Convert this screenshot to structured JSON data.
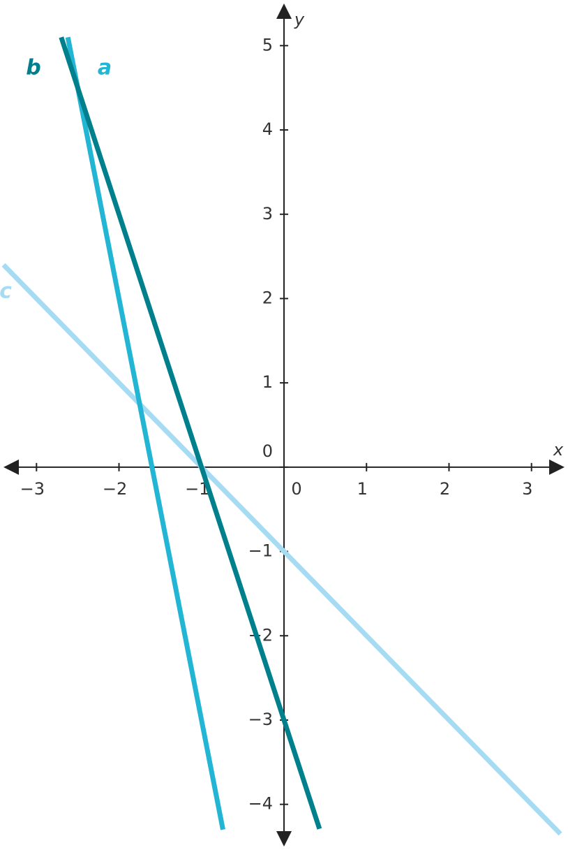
{
  "chart_data": {
    "type": "line",
    "x_label": "x",
    "y_label": "y",
    "xlim": [
      -3.4,
      3.4
    ],
    "ylim": [
      -4.5,
      5.5
    ],
    "xticks": [
      {
        "value": -3,
        "label": "−3"
      },
      {
        "value": -2,
        "label": "−2"
      },
      {
        "value": -1,
        "label": "−1"
      },
      0,
      1,
      2,
      3
    ],
    "yticks": [
      {
        "value": -4,
        "label": "−4"
      },
      {
        "value": -3,
        "label": "−3"
      },
      {
        "value": -2,
        "label": "−2"
      },
      {
        "value": -1,
        "label": "−1"
      },
      0,
      1,
      2,
      3,
      4,
      5
    ],
    "series": [
      {
        "name": "a",
        "color": "#22b5d4",
        "x": [
          -2.62,
          -0.74
        ],
        "values": [
          5.1,
          -4.3
        ]
      },
      {
        "name": "b",
        "color": "#00808d",
        "x": [
          -2.7,
          0.43
        ],
        "values": [
          5.1,
          -4.29
        ]
      },
      {
        "name": "c",
        "color": "#a6dbf4",
        "x": [
          -3.4,
          3.35
        ],
        "values": [
          2.4,
          -4.35
        ]
      }
    ]
  }
}
